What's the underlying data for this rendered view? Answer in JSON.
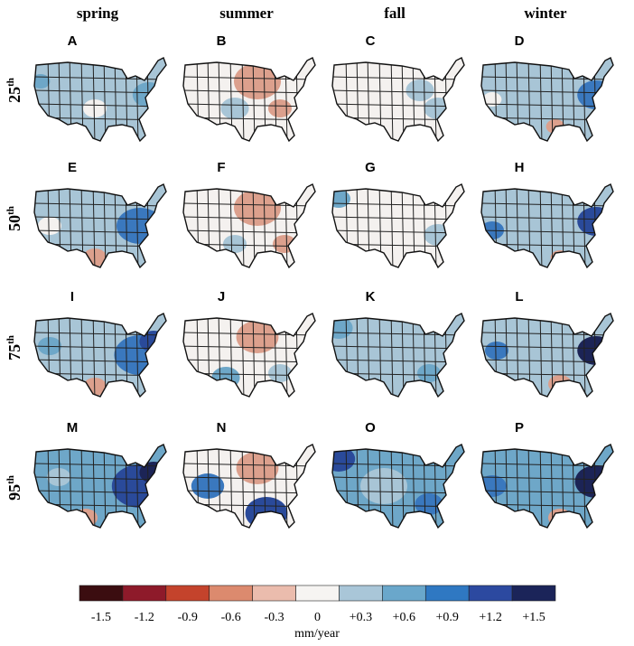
{
  "columns": [
    "spring",
    "summer",
    "fall",
    "winter"
  ],
  "rows": [
    {
      "number": "25",
      "suffix": "th"
    },
    {
      "number": "50",
      "suffix": "th"
    },
    {
      "number": "75",
      "suffix": "th"
    },
    {
      "number": "95",
      "suffix": "th"
    }
  ],
  "panels": [
    "A",
    "B",
    "C",
    "D",
    "E",
    "F",
    "G",
    "H",
    "I",
    "J",
    "K",
    "L",
    "M",
    "N",
    "O",
    "P"
  ],
  "colorbar": {
    "colors": [
      "#3b0d10",
      "#8e1a2a",
      "#c4432c",
      "#dc8a6e",
      "#ebbcad",
      "#f6f4f2",
      "#a9c6d8",
      "#6aa7cb",
      "#2f78c2",
      "#2c49a0",
      "#1b2459"
    ],
    "ticks": [
      -1.5,
      -1.2,
      -0.9,
      -0.6,
      -0.3,
      0,
      {
        "value": 0.3,
        "label": "+0.3"
      },
      {
        "value": 0.6,
        "label": "+0.6"
      },
      {
        "value": 0.9,
        "label": "+0.9"
      },
      {
        "value": 1.2,
        "label": "+1.2"
      },
      {
        "value": 1.5,
        "label": "+1.5"
      }
    ],
    "unit": "mm/year"
  }
}
